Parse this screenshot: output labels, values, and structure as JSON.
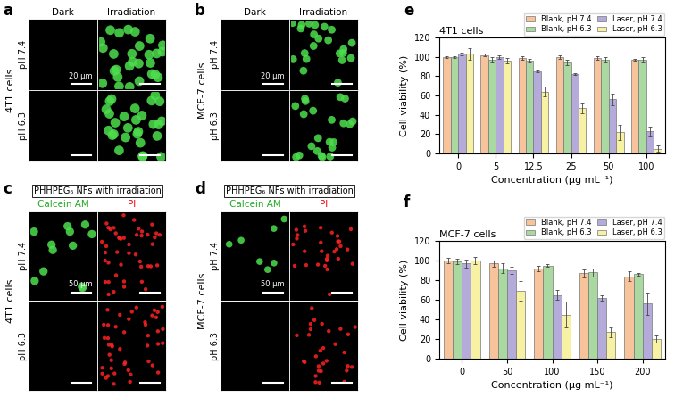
{
  "image_panels": [
    {
      "label": "a",
      "row_group": "4T1 cells",
      "columns": [
        "Dark",
        "Irradiation"
      ],
      "column_colors": [
        "#000000",
        "#000000"
      ],
      "rows": [
        "pH 7.4",
        "pH 6.3"
      ],
      "scale_bar": "20 μm"
    },
    {
      "label": "b",
      "row_group": "MCF-7 cells",
      "columns": [
        "Dark",
        "Irradiation"
      ],
      "column_colors": [
        "#000000",
        "#000000"
      ],
      "rows": [
        "pH 7.4",
        "pH 6.3"
      ],
      "scale_bar": "20 μm"
    },
    {
      "label": "c",
      "header": "PHHPEG₆ NFs with irradiation",
      "row_group": "4T1 cells",
      "columns": [
        "Calcein AM",
        "PI"
      ],
      "column_colors": [
        "#22aa22",
        "#ee0000"
      ],
      "rows": [
        "pH 7.4",
        "pH 6.3"
      ],
      "scale_bar": "50 μm"
    },
    {
      "label": "d",
      "header": "PHHPEG₆ NFs with irradiation",
      "row_group": "MCF-7 cells",
      "columns": [
        "Calcein AM",
        "PI"
      ],
      "column_colors": [
        "#22aa22",
        "#ee0000"
      ],
      "rows": [
        "pH 7.4",
        "pH 6.3"
      ],
      "scale_bar": "50 μm"
    }
  ],
  "chart_data": [
    {
      "type": "bar",
      "title": "4T1 cells",
      "annotations": [
        "e"
      ],
      "x_label": "Concentration (μg mL⁻¹)",
      "y_label": "Cell viability (%)",
      "categories": [
        "0",
        "5",
        "12.5",
        "25",
        "50",
        "100"
      ],
      "series": [
        {
          "name": "Blank, pH 7.4",
          "color": "#f6c39b",
          "values": [
            100,
            102,
            99,
            100,
            99,
            97
          ],
          "errors": [
            1,
            1,
            2,
            2,
            2,
            1
          ]
        },
        {
          "name": "Blank, pH 6.3",
          "color": "#a9d9a0",
          "values": [
            100,
            97,
            96,
            94,
            97,
            97
          ],
          "errors": [
            1,
            3,
            2,
            3,
            3,
            3
          ]
        },
        {
          "name": "Laser, pH 7.4",
          "color": "#b4abdb",
          "values": [
            103,
            100,
            85,
            82,
            56,
            23
          ],
          "errors": [
            1,
            2,
            1,
            1,
            6,
            5
          ]
        },
        {
          "name": "Laser, pH 6.3",
          "color": "#f6f1a3",
          "values": [
            103,
            96,
            64,
            47,
            22,
            5
          ],
          "errors": [
            6,
            3,
            5,
            5,
            8,
            3
          ]
        }
      ],
      "ylim": [
        0,
        120
      ],
      "yticks": [
        0,
        20,
        40,
        60,
        80,
        100,
        120
      ],
      "legend": "upper right"
    },
    {
      "type": "bar",
      "title": "MCF-7 cells",
      "annotations": [
        "f"
      ],
      "x_label": "Concentration (μg mL⁻¹)",
      "y_label": "Cell viability (%)",
      "categories": [
        "0",
        "50",
        "100",
        "150",
        "200"
      ],
      "series": [
        {
          "name": "Blank, pH 7.4",
          "color": "#f6c39b",
          "values": [
            100,
            97,
            92,
            87,
            84
          ],
          "errors": [
            3,
            3,
            3,
            4,
            5
          ]
        },
        {
          "name": "Blank, pH 6.3",
          "color": "#a9d9a0",
          "values": [
            99,
            92,
            95,
            88,
            86
          ],
          "errors": [
            3,
            5,
            1,
            4,
            1
          ]
        },
        {
          "name": "Laser, pH 7.4",
          "color": "#b4abdb",
          "values": [
            97,
            90,
            65,
            62,
            56
          ],
          "errors": [
            4,
            4,
            5,
            3,
            11
          ]
        },
        {
          "name": "Laser, pH 6.3",
          "color": "#f6f1a3",
          "values": [
            100,
            69,
            45,
            27,
            20
          ],
          "errors": [
            4,
            10,
            13,
            5,
            4
          ]
        }
      ],
      "ylim": [
        0,
        120
      ],
      "yticks": [
        0,
        20,
        40,
        60,
        80,
        100,
        120
      ],
      "legend": "upper right"
    }
  ]
}
